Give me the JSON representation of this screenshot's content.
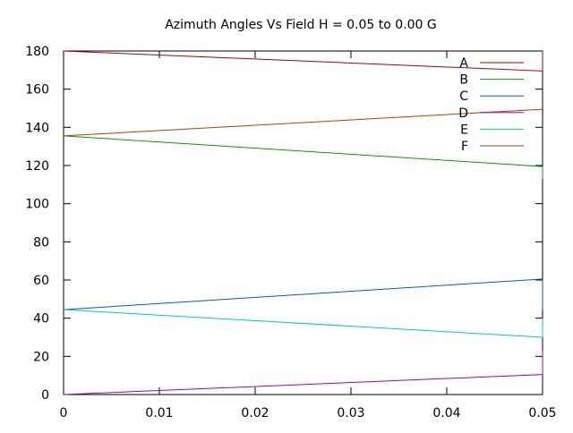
{
  "chart_data": {
    "type": "line",
    "title": "Azimuth Angles Vs Field H = 0.05 to 0.00 G",
    "xlabel": "",
    "ylabel": "",
    "xlim": [
      0,
      0.05
    ],
    "ylim": [
      0,
      180
    ],
    "x_ticks": [
      0,
      0.01,
      0.02,
      0.03,
      0.04,
      0.05
    ],
    "x_tick_labels": [
      "0",
      "0.01",
      "0.02",
      "0.03",
      "0.04",
      "0.05"
    ],
    "y_ticks": [
      0,
      20,
      40,
      60,
      80,
      100,
      120,
      140,
      160,
      180
    ],
    "y_tick_labels": [
      "0",
      "20",
      "40",
      "60",
      "80",
      "100",
      "120",
      "140",
      "160",
      "180"
    ],
    "grid": false,
    "legend_position": "top-right",
    "series": [
      {
        "name": "A",
        "color": "#b00000",
        "x": [
          0,
          0.05,
          0.05
        ],
        "y": [
          180,
          169.5,
          180
        ]
      },
      {
        "name": "B",
        "color": "#00a000",
        "x": [
          0,
          0.05,
          0.05
        ],
        "y": [
          135.5,
          119.5,
          113
        ]
      },
      {
        "name": "C",
        "color": "#0060b0",
        "x": [
          0,
          0.05,
          0.05
        ],
        "y": [
          44.5,
          60.5,
          44.5
        ]
      },
      {
        "name": "D",
        "color": "#a000c0",
        "x": [
          0,
          0.05,
          0.05
        ],
        "y": [
          0,
          10.5,
          23
        ]
      },
      {
        "name": "E",
        "color": "#00c8c8",
        "x": [
          0,
          0.05,
          0.05
        ],
        "y": [
          44.5,
          30,
          40
        ]
      },
      {
        "name": "F",
        "color": "#b04000",
        "x": [
          0,
          0.05,
          0.05
        ],
        "y": [
          135.5,
          149.5,
          149.5
        ]
      }
    ]
  }
}
